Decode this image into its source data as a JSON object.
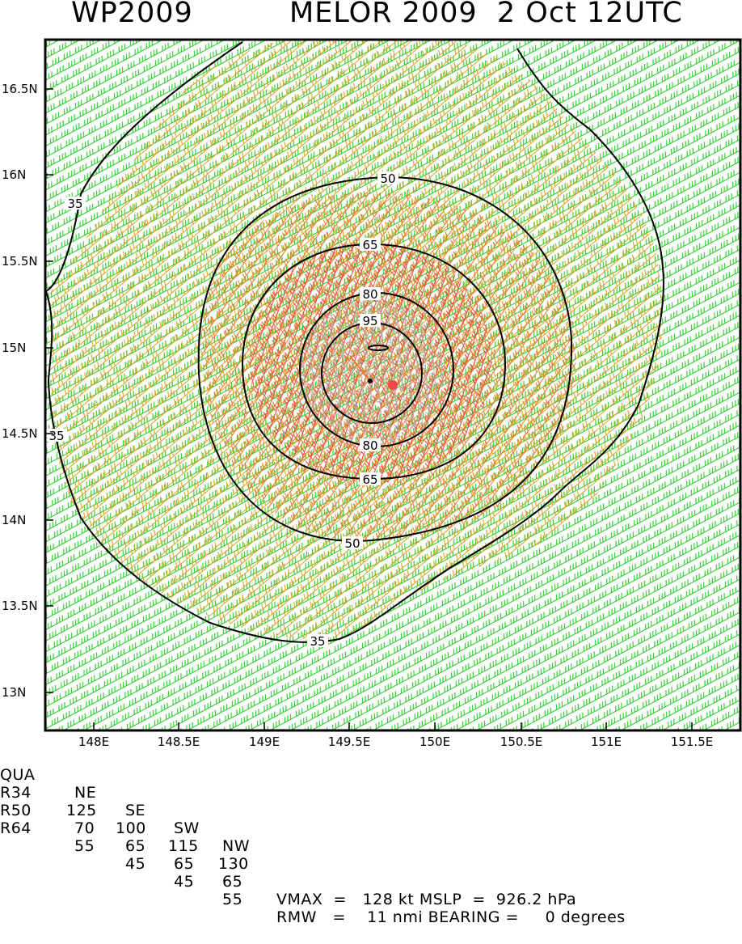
{
  "header": {
    "storm_id": "WP2009",
    "storm_title": "MELOR 2009  2 Oct 12UTC"
  },
  "map": {
    "lat_labels": [
      "16.5N",
      "16N",
      "15.5N",
      "15N",
      "14.5N",
      "14N",
      "13.5N",
      "13N"
    ],
    "lon_labels": [
      "148E",
      "148.5E",
      "149E",
      "149.5E",
      "150E",
      "150.5E",
      "151E",
      "151.5E"
    ],
    "contour_labels": [
      "35",
      "35",
      "35",
      "50",
      "50",
      "65",
      "65",
      "80",
      "80",
      "95"
    ],
    "colors": {
      "wind_34_49": "#22cc22",
      "wind_50_63": "#e0a020",
      "wind_64_79": "#e87a2a",
      "wind_80_95": "#f04848",
      "wind_96_plus": "#b0b0b0",
      "contour": "#000000",
      "center_marker": "#f04848"
    }
  },
  "table": {
    "header": [
      "QUA",
      "NE",
      "SE",
      "SW",
      "NW"
    ],
    "rows": [
      [
        "R34",
        "125",
        "100",
        "115",
        "130"
      ],
      [
        "R50",
        "70",
        "65",
        "65",
        "65"
      ],
      [
        "R64",
        "55",
        "45",
        "45",
        "55"
      ]
    ],
    "vmax_text": "VMAX  =   128 kt MSLP  =  926.2 hPa",
    "rmw_text": "RMW   =    11 nmi BEARING =     0 degrees"
  }
}
